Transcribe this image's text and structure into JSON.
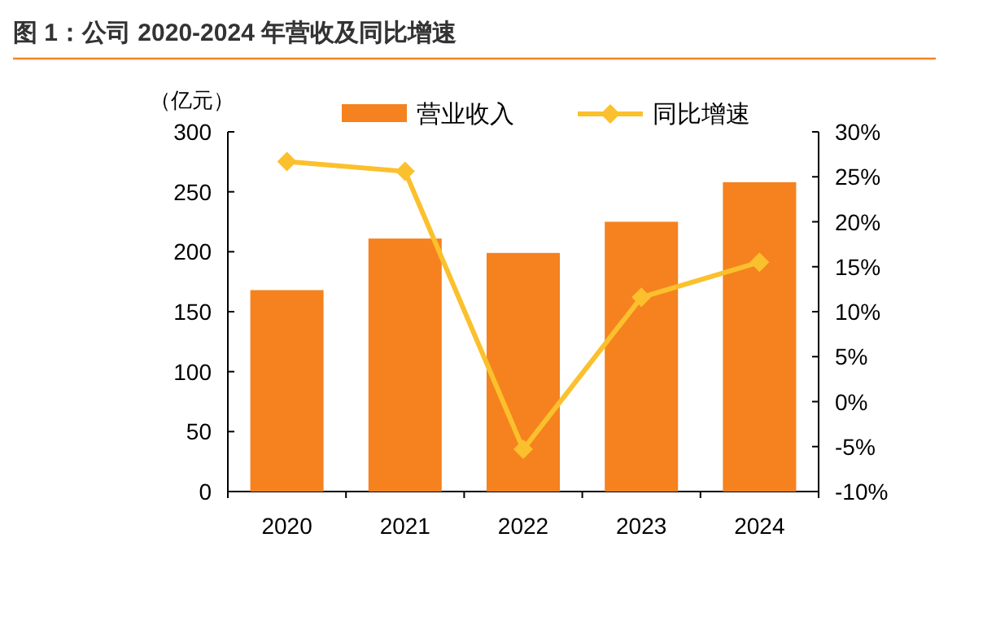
{
  "chart_data": {
    "type": "bar",
    "title": "图 1：公司 2020-2024 年营收及同比增速",
    "ylabel": "（亿元）",
    "categories": [
      "2020",
      "2021",
      "2022",
      "2023",
      "2024"
    ],
    "series": [
      {
        "name": "营业收入",
        "color": "#f5821f",
        "values": [
          168,
          211,
          199,
          225,
          258
        ]
      },
      {
        "name": "同比增速",
        "type": "line",
        "axis": "y2",
        "marker": "diamond",
        "color": "#fbc02d",
        "values": [
          26.7,
          25.6,
          -5.3,
          11.6,
          15.5
        ]
      }
    ],
    "ylim": [
      0,
      300
    ],
    "yticks": [
      0,
      50,
      100,
      150,
      200,
      250,
      300
    ],
    "y2lim": [
      -10,
      30
    ],
    "y2ticks": [
      {
        "value": -10,
        "label": "-10%"
      },
      {
        "value": -5,
        "label": "-5%"
      },
      {
        "value": 0,
        "label": "0%"
      },
      {
        "value": 5,
        "label": "5%"
      },
      {
        "value": 10,
        "label": "10%"
      },
      {
        "value": 15,
        "label": "15%"
      },
      {
        "value": 20,
        "label": "20%"
      },
      {
        "value": 25,
        "label": "25%"
      },
      {
        "value": 30,
        "label": "30%"
      }
    ],
    "legend": "top",
    "grid": false
  }
}
